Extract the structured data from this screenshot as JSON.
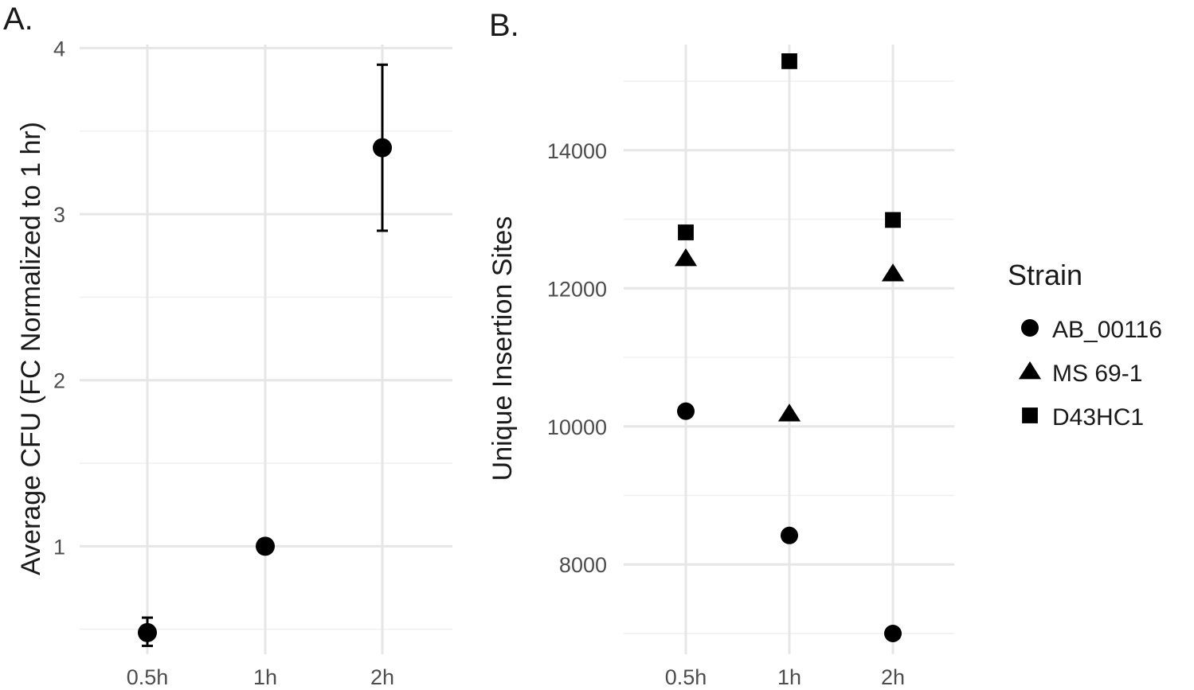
{
  "chart_data": [
    {
      "panel_tag": "A.",
      "type": "scatter",
      "ylabel": "Average CFU (FC Normalized to 1 hr)",
      "xlabel": "",
      "categories": [
        "0.5h",
        "1h",
        "2h"
      ],
      "ylim": [
        0.35,
        4.05
      ],
      "yticks": [
        "1",
        "2",
        "3",
        "4"
      ],
      "ytick_values": [
        1,
        2,
        3,
        4
      ],
      "grid": true,
      "series": [
        {
          "marker": "circle",
          "values": [
            0.48,
            1.0,
            3.4
          ],
          "error_low": [
            0.4,
            1.0,
            2.9
          ],
          "error_high": [
            0.57,
            1.0,
            3.9
          ]
        }
      ]
    },
    {
      "panel_tag": "B.",
      "type": "scatter",
      "ylabel": "Unique Insertion Sites",
      "xlabel": "",
      "categories": [
        "0.5h",
        "1h",
        "2h"
      ],
      "ylim": [
        6700,
        15600
      ],
      "yticks": [
        "8000",
        "10000",
        "12000",
        "14000"
      ],
      "ytick_values": [
        8000,
        10000,
        12000,
        14000
      ],
      "grid": true,
      "legend_position": "right",
      "legend_title": "Strain",
      "series": [
        {
          "name": "AB_00116",
          "marker": "circle",
          "values": [
            10220,
            8420,
            7000
          ]
        },
        {
          "name": "MS 69-1",
          "marker": "triangle",
          "values": [
            12430,
            10180,
            12210
          ]
        },
        {
          "name": "D43HC1",
          "marker": "square",
          "values": [
            12810,
            15290,
            12990
          ]
        }
      ]
    }
  ]
}
